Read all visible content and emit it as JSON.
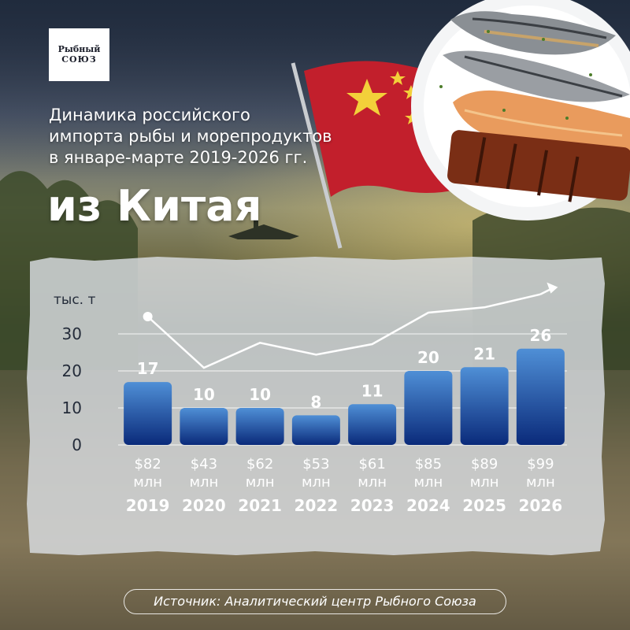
{
  "logo": {
    "line1": "Рыбный",
    "line2": "СОЮЗ"
  },
  "heading": {
    "lines": [
      "Динамика российского",
      "импорта рыбы и морепродуктов",
      "в январе-марте 2019-2026 гг."
    ],
    "big": "из Китая"
  },
  "source": "Источник: Аналитический центр Рыбного Союза",
  "colors": {
    "bar_top": "#4f8fd6",
    "bar_bottom": "#0a2a7a",
    "text_dark": "#242c3a",
    "flag_red": "#c21f2c",
    "flag_star": "#f3d03a"
  },
  "chart_data": {
    "type": "bar",
    "unit_label": "тыс. т",
    "categories": [
      "2019",
      "2020",
      "2021",
      "2022",
      "2023",
      "2024",
      "2025",
      "2026"
    ],
    "values": [
      17,
      10,
      10,
      8,
      11,
      20,
      21,
      26
    ],
    "value_labels": [
      "17",
      "10",
      "10",
      "8",
      "11",
      "20",
      "21",
      "26"
    ],
    "cost_labels": [
      [
        "$82",
        "млн"
      ],
      [
        "$43",
        "млн"
      ],
      [
        "$62",
        "млн"
      ],
      [
        "$53",
        "млн"
      ],
      [
        "$61",
        "млн"
      ],
      [
        "$85",
        "млн"
      ],
      [
        "$89",
        "млн"
      ],
      [
        "$99",
        "млн"
      ]
    ],
    "cost_values_musd": [
      82,
      43,
      62,
      53,
      61,
      85,
      89,
      99
    ],
    "y_ticks": [
      0,
      10,
      20,
      30
    ],
    "ylim": [
      0,
      30
    ],
    "grid": true,
    "trend_line": true
  }
}
